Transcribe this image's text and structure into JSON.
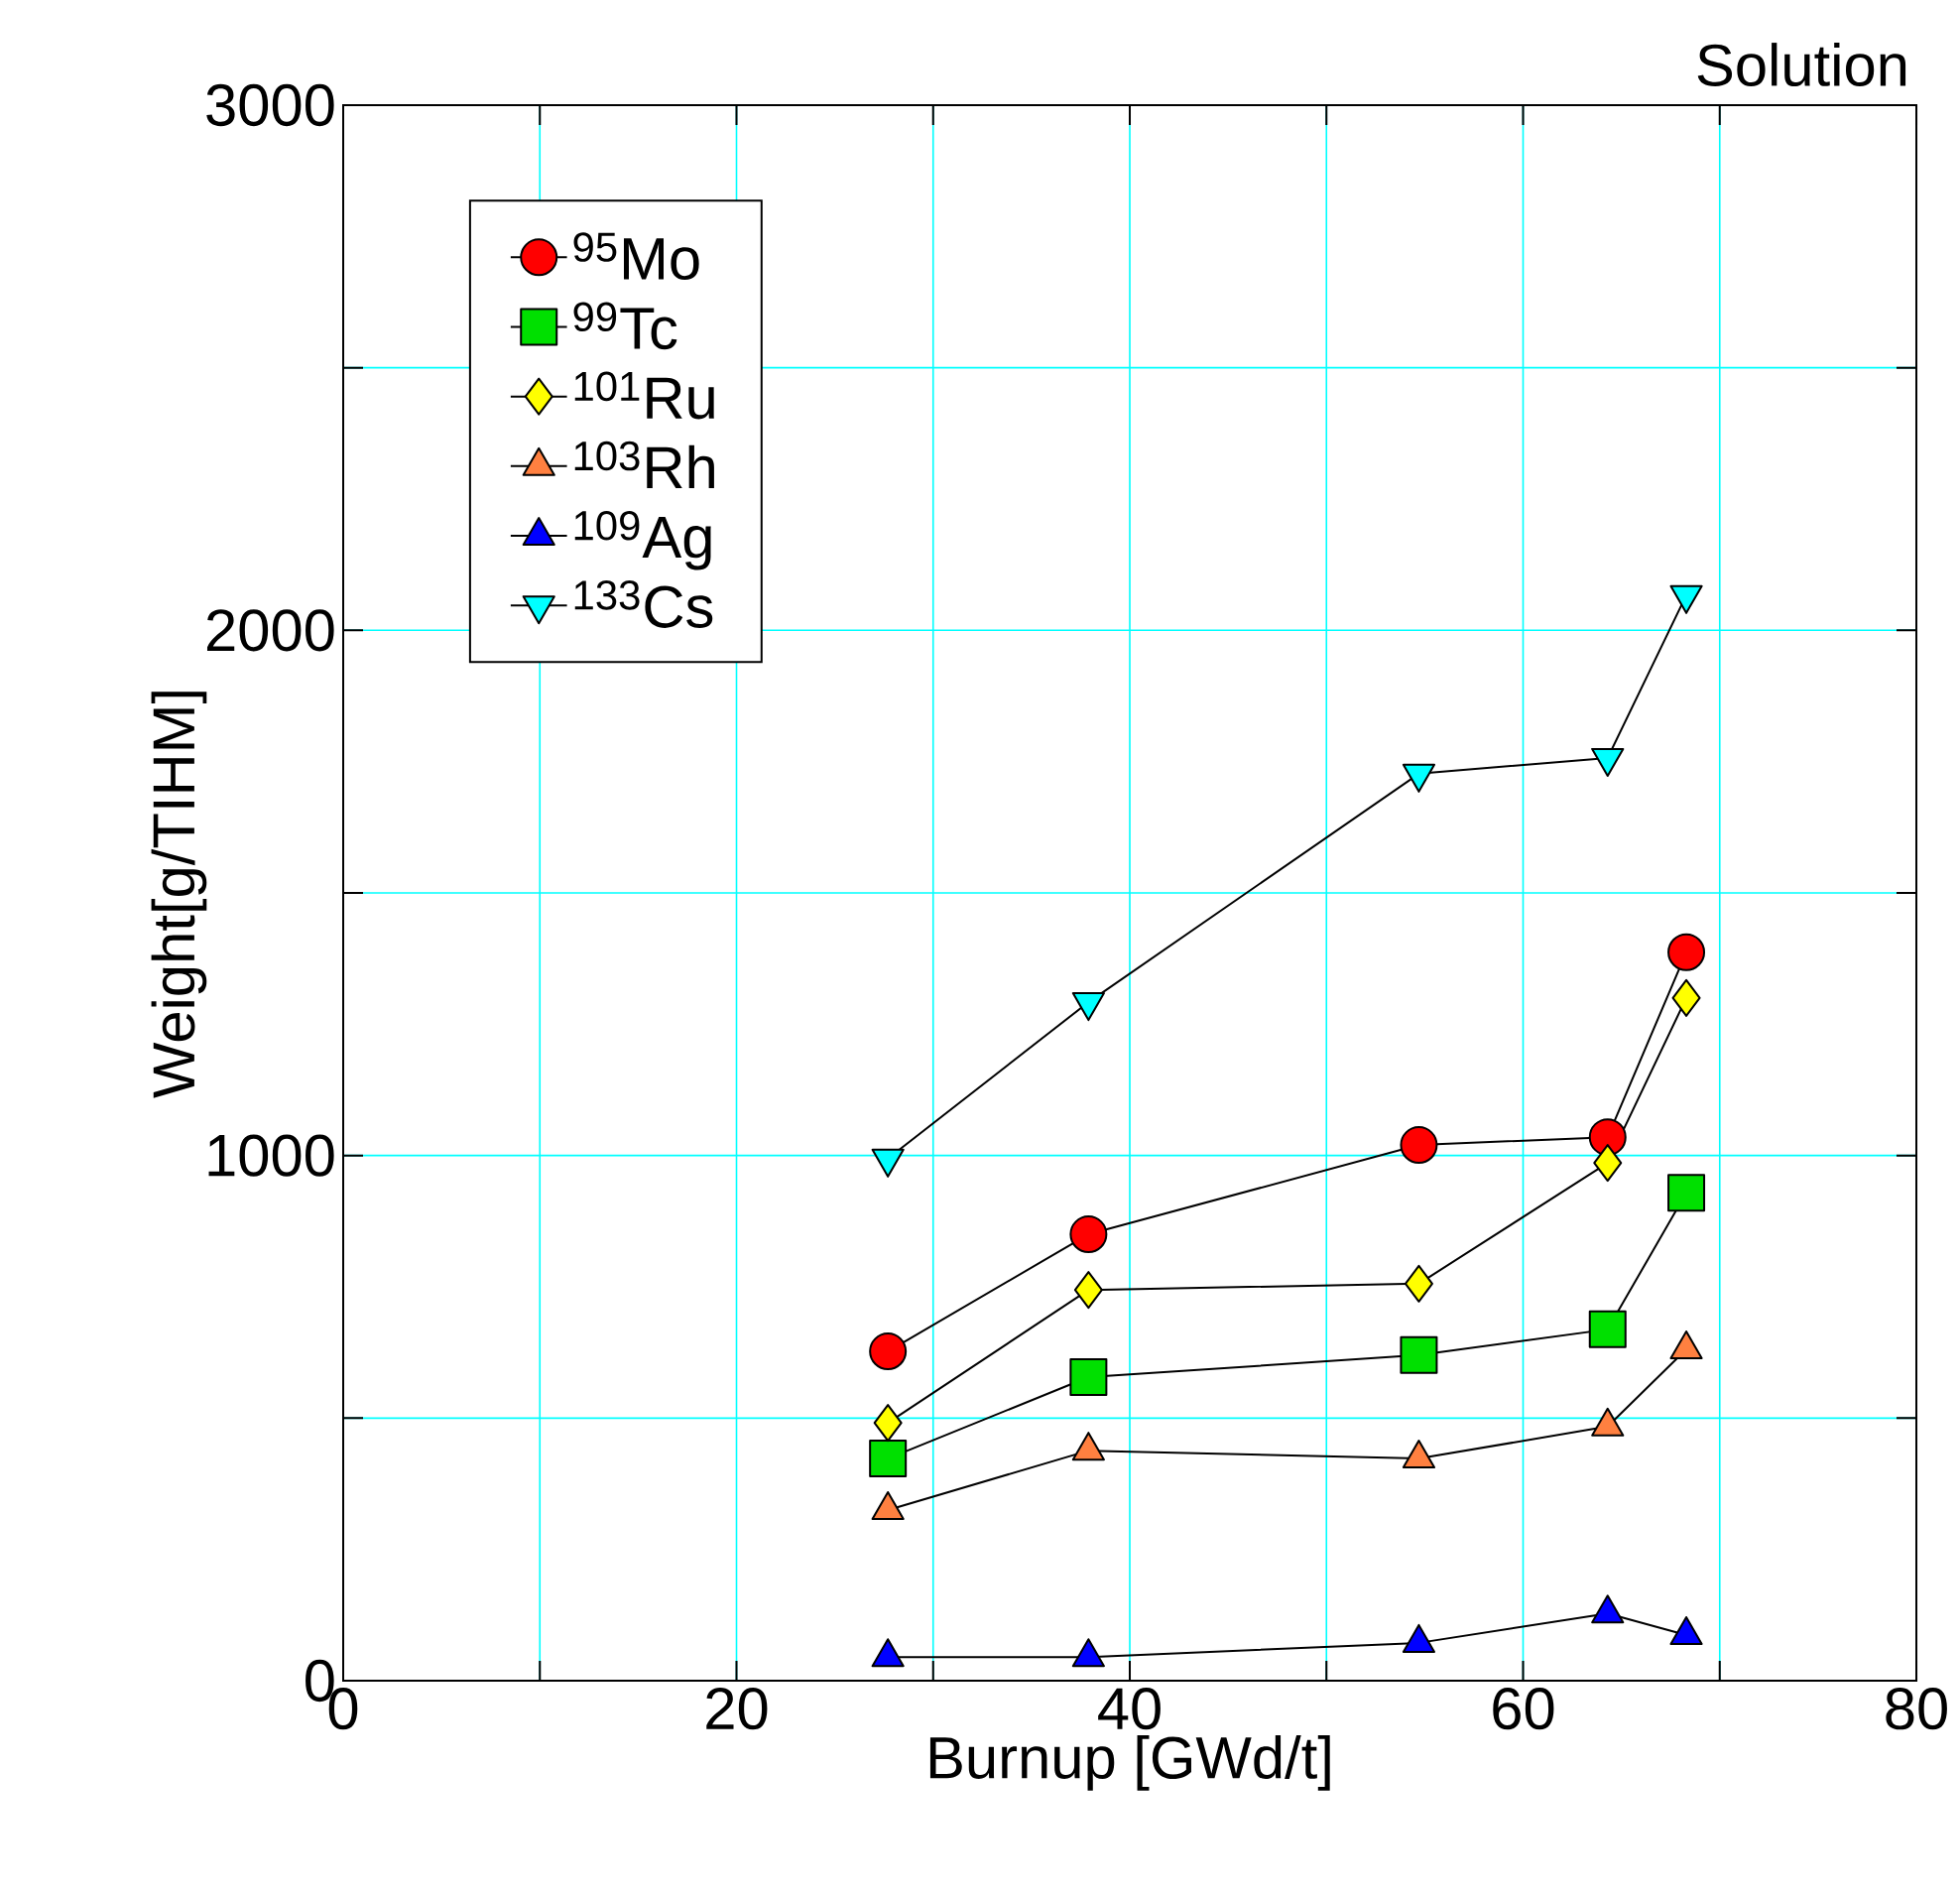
{
  "chart_data": {
    "type": "line",
    "title": "Solution",
    "xlabel": "Burnup [GWd/t]",
    "ylabel": "Weight[g/TIHM]",
    "x": [
      27.7,
      37.9,
      54.7,
      64.3,
      68.3
    ],
    "series": [
      {
        "name": "$^{95}$Mo",
        "color": "#ff0000",
        "marker": "circle",
        "values": [
          627,
          850,
          1020,
          1035,
          1387
        ]
      },
      {
        "name": "$^{99}$Tc",
        "color": "#00e000",
        "marker": "square",
        "values": [
          423,
          578,
          620,
          669,
          929
        ]
      },
      {
        "name": "$^{101}$Ru",
        "color": "#ffff00",
        "marker": "diamond",
        "values": [
          491,
          744,
          756,
          986,
          1300
        ]
      },
      {
        "name": "$^{103}$Rh",
        "color": "#ff8040",
        "marker": "triangle",
        "values": [
          325,
          438,
          423,
          484,
          631
        ]
      },
      {
        "name": "$^{109}$Ag",
        "color": "#0000ff",
        "marker": "triangle",
        "values": [
          45,
          45,
          72,
          128,
          87
        ]
      },
      {
        "name": "$^{133}$Cs",
        "color": "#00ffff",
        "marker": "triangle-down",
        "values": [
          994,
          1292,
          1727,
          1757,
          2067
        ]
      }
    ],
    "xlim": [
      0,
      80
    ],
    "xticks": [
      0,
      {
        "value": 10,
        "label": null
      },
      20,
      {
        "value": 30,
        "label": null
      },
      40,
      {
        "value": 50,
        "label": null
      },
      60,
      {
        "value": 70,
        "label": null
      },
      80
    ],
    "ylim": [
      0,
      3000
    ],
    "yticks": [
      0,
      {
        "value": 500,
        "label": null
      },
      1000,
      {
        "value": 1500,
        "label": null
      },
      2000,
      {
        "value": 2500,
        "label": null
      },
      3000
    ],
    "grid": true,
    "legend": "top left",
    "line_style": "solid"
  }
}
